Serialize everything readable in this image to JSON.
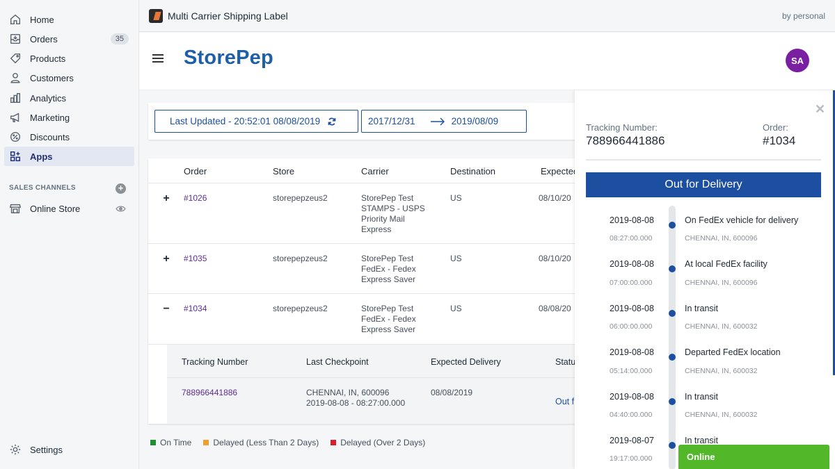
{
  "sidebar": {
    "items": [
      {
        "label": "Home",
        "icon": "home-icon"
      },
      {
        "label": "Orders",
        "icon": "orders-icon",
        "badge": "35"
      },
      {
        "label": "Products",
        "icon": "tag-icon"
      },
      {
        "label": "Customers",
        "icon": "person-icon"
      },
      {
        "label": "Analytics",
        "icon": "bar-chart-icon"
      },
      {
        "label": "Marketing",
        "icon": "megaphone-icon"
      },
      {
        "label": "Discounts",
        "icon": "discount-icon"
      },
      {
        "label": "Apps",
        "icon": "apps-icon",
        "active": true
      }
    ],
    "sales_channels_title": "SALES CHANNELS",
    "online_store_label": "Online Store",
    "settings_label": "Settings"
  },
  "topbar": {
    "app_title": "Multi Carrier Shipping Label",
    "by": "by personal"
  },
  "header": {
    "logo": "StorePep",
    "avatar": "SA"
  },
  "filters": {
    "last_updated": "Last Updated - 20:52:01 08/08/2019",
    "date_from": "2017/12/31",
    "date_to": "2019/08/09"
  },
  "table": {
    "headers": {
      "order": "Order",
      "store": "Store",
      "carrier": "Carrier",
      "destination": "Destination",
      "expected": "Expected"
    },
    "rows": [
      {
        "expander": "+",
        "order": "#1026",
        "store": "storepepzeus2",
        "carrier": [
          "StorePep Test",
          "STAMPS - USPS",
          "Priority Mail",
          "Express"
        ],
        "destination": "US",
        "expected": "08/10/20"
      },
      {
        "expander": "+",
        "order": "#1035",
        "store": "storepepzeus2",
        "carrier": [
          "StorePep Test",
          "FedEx - Fedex",
          "Express Saver"
        ],
        "destination": "US",
        "expected": "08/10/20"
      },
      {
        "expander": "−",
        "order": "#1034",
        "store": "storepepzeus2",
        "carrier": [
          "StorePep Test",
          "FedEx - Fedex",
          "Express Saver"
        ],
        "destination": "US",
        "expected": "08/08/20"
      }
    ],
    "sub": {
      "headers": {
        "tracking": "Tracking Number",
        "checkpoint": "Last Checkpoint",
        "expected": "Expected Delivery",
        "status": "Status"
      },
      "row": {
        "tracking": "788966441886",
        "checkpoint_line1": "CHENNAI, IN,  600096",
        "checkpoint_line2": "2019-08-08 - 08:27:00.000",
        "expected": "08/08/2019",
        "status": "Out f"
      }
    }
  },
  "legend": [
    {
      "label": "On Time",
      "color": "#1e8f2e"
    },
    {
      "label": "Delayed (Less Than 2 Days)",
      "color": "#f0a030"
    },
    {
      "label": "Delayed (Over 2 Days)",
      "color": "#d9202a"
    }
  ],
  "panel": {
    "tracking_label": "Tracking Number:",
    "tracking_value": "788966441886",
    "order_label": "Order:",
    "order_value": "#1034",
    "status": "Out for Delivery",
    "events": [
      {
        "date": "2019-08-08",
        "time": "08:27:00.000",
        "event": "On FedEx vehicle for delivery",
        "location": "CHENNAI, IN, 600096"
      },
      {
        "date": "2019-08-08",
        "time": "07:00:00.000",
        "event": "At local FedEx facility",
        "location": "CHENNAI, IN, 600096"
      },
      {
        "date": "2019-08-08",
        "time": "06:00:00.000",
        "event": "In transit",
        "location": "CHENNAI, IN, 600032"
      },
      {
        "date": "2019-08-08",
        "time": "05:14:00.000",
        "event": "Departed FedEx location",
        "location": "CHENNAI, IN, 600032"
      },
      {
        "date": "2019-08-08",
        "time": "04:40:00.000",
        "event": "In transit",
        "location": "CHENNAI, IN, 600032"
      },
      {
        "date": "2019-08-07",
        "time": "19:17:00.000",
        "event": "In transit",
        "location": ""
      }
    ]
  },
  "chat": {
    "label": "Online"
  }
}
